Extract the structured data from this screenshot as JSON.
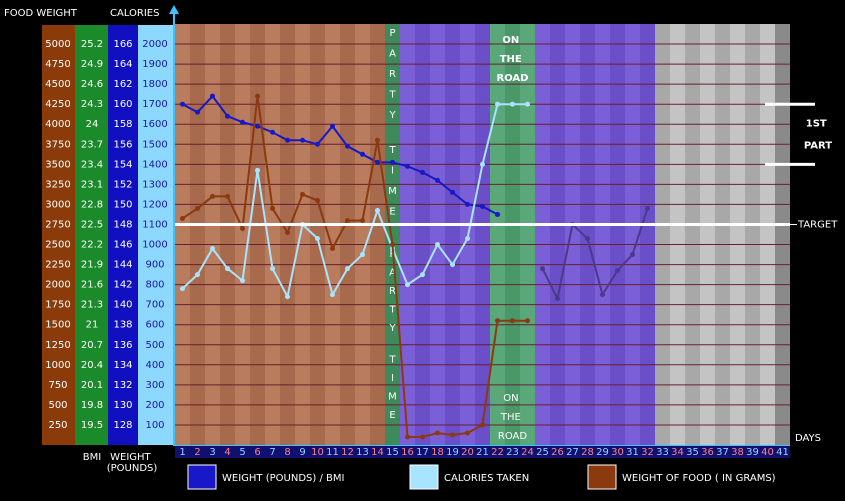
{
  "chart_data": {
    "type": "line",
    "header_left": "FOOD WEIGHT",
    "header_calories": "CALORIES",
    "bmi_label": "BMI",
    "weight_label": "WEIGHT (POUNDS)",
    "x_label": "DAYS",
    "target_label": "TARGET",
    "target": 1100,
    "part_label": "1ST PART",
    "part_range": [
      1400,
      1700
    ],
    "party_label": "PARTY TIME",
    "road_label": "ON THE ROAD",
    "x": [
      1,
      2,
      3,
      4,
      5,
      6,
      7,
      8,
      9,
      10,
      11,
      12,
      13,
      14,
      15,
      16,
      17,
      18,
      19,
      20,
      21,
      22,
      23,
      24,
      25,
      26,
      27,
      28,
      29,
      30,
      31,
      32,
      33,
      34,
      35,
      36,
      37,
      38,
      39,
      40,
      41
    ],
    "xlim": [
      0.5,
      41.5
    ],
    "ylim": [
      0,
      2100
    ],
    "yticks": [
      2000,
      1900,
      1800,
      1700,
      1600,
      1500,
      1400,
      1300,
      1200,
      1100,
      1000,
      900,
      800,
      700,
      600,
      500,
      400,
      300,
      200,
      100
    ],
    "food_weight_ticks": [
      5000,
      4750,
      4500,
      4250,
      4000,
      3750,
      3500,
      3250,
      3000,
      2750,
      2500,
      2250,
      2000,
      1750,
      1500,
      1250,
      1000,
      750,
      500,
      250
    ],
    "bmi_ticks": [
      25.2,
      24.9,
      24.6,
      24.3,
      24,
      23.7,
      23.4,
      23.1,
      22.8,
      22.5,
      22.2,
      21.9,
      21.6,
      21.3,
      21,
      20.7,
      20.4,
      20.1,
      19.8,
      19.5
    ],
    "weight_ticks": [
      166,
      164,
      162,
      160,
      158,
      156,
      154,
      152,
      150,
      148,
      146,
      144,
      142,
      140,
      138,
      136,
      134,
      132,
      130,
      128
    ],
    "grid": true,
    "day_colors": [
      "#b97c5c",
      "#a86a4c",
      "#b97c5c",
      "#a86a4c",
      "#b97c5c",
      "#a86a4c",
      "#b97c5c",
      "#a86a4c",
      "#b97c5c",
      "#a86a4c",
      "#b97c5c",
      "#a86a4c",
      "#b97c5c",
      "#a86a4c",
      "#3f8a5a",
      "#7b5fd6",
      "#6a4fc8",
      "#7b5fd6",
      "#6a4fc8",
      "#7b5fd6",
      "#6a4fc8",
      "#5aa77a",
      "#4a9868",
      "#5aa77a",
      "#7b5fd6",
      "#6a4fc8",
      "#7b5fd6",
      "#6a4fc8",
      "#7b5fd6",
      "#6a4fc8",
      "#7b5fd6",
      "#6a4fc8",
      "#a8a8a8",
      "#c4c4c4",
      "#a8a8a8",
      "#c4c4c4",
      "#a8a8a8",
      "#c4c4c4",
      "#a8a8a8",
      "#c4c4c4",
      "#8a8a8a"
    ],
    "series": [
      {
        "name": "WEIGHT (POUNDS) / BMI",
        "color": "#1818c8",
        "values": [
          1700,
          1660,
          1740,
          1640,
          1610,
          1590,
          1560,
          1520,
          1520,
          1500,
          1590,
          1490,
          1450,
          1410,
          1410,
          1390,
          1360,
          1320,
          1260,
          1200,
          1190,
          1150,
          null,
          null,
          null,
          null,
          null,
          null,
          null,
          null,
          null,
          null,
          null,
          null,
          null,
          null,
          null,
          null,
          null,
          null,
          null
        ]
      },
      {
        "name": "CALORIES TAKEN",
        "color": "#a8e4ff",
        "values": [
          780,
          850,
          980,
          880,
          820,
          1370,
          880,
          740,
          1100,
          1030,
          750,
          880,
          950,
          1170,
          980,
          800,
          850,
          1000,
          900,
          1030,
          1400,
          1700,
          1700,
          1700,
          null,
          null,
          null,
          null,
          null,
          null,
          null,
          null,
          null,
          null,
          null,
          null,
          null,
          null,
          null,
          null,
          null
        ]
      },
      {
        "name": "WEIGHT OF FOOD ( IN GRAMS)",
        "color": "#8b3a10",
        "values": [
          1130,
          1180,
          1240,
          1240,
          1080,
          1740,
          1180,
          1060,
          1250,
          1220,
          980,
          1120,
          1120,
          1520,
          1000,
          40,
          40,
          60,
          50,
          60,
          100,
          620,
          620,
          620,
          null,
          null,
          null,
          null,
          null,
          null,
          null,
          null,
          null,
          null,
          null,
          null,
          null,
          null,
          null,
          null,
          null
        ]
      },
      {
        "color": "#4a3a8a",
        "values": [
          null,
          null,
          null,
          null,
          null,
          null,
          null,
          null,
          null,
          null,
          null,
          null,
          null,
          null,
          null,
          null,
          null,
          null,
          null,
          null,
          null,
          null,
          null,
          null,
          880,
          730,
          1100,
          1030,
          750,
          870,
          950,
          1180,
          null,
          null,
          null,
          null,
          null,
          null,
          null,
          null,
          null
        ]
      }
    ]
  }
}
